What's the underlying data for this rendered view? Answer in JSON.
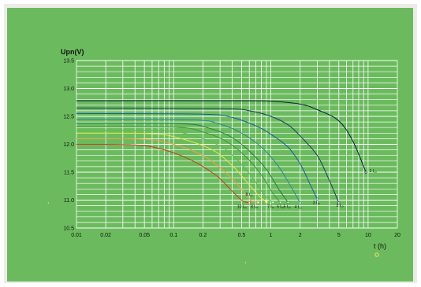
{
  "chart_data": {
    "type": "line",
    "ylabel": "Upn(V)",
    "xlabel": "t (h)",
    "x_scale": "log",
    "xlim": [
      0.01,
      20
    ],
    "ylim": [
      10.5,
      13.5
    ],
    "grid": true,
    "x_ticks": [
      {
        "value": 0.01,
        "label": "0.01"
      },
      {
        "value": 0.02,
        "label": "0.02"
      },
      {
        "value": 0.05,
        "label": "0.05"
      },
      {
        "value": 0.1,
        "label": "0.1"
      },
      {
        "value": 0.2,
        "label": "0.2"
      },
      {
        "value": 0.5,
        "label": "0.5"
      },
      {
        "value": 1,
        "label": "1"
      },
      {
        "value": 2,
        "label": "2"
      },
      {
        "value": 5,
        "label": "5"
      },
      {
        "value": 10,
        "label": "10"
      },
      {
        "value": 20,
        "label": "20"
      }
    ],
    "y_ticks": [
      {
        "value": 10.5,
        "label": "10.5"
      },
      {
        "value": 11.0,
        "label": "11.0"
      },
      {
        "value": 11.5,
        "label": "11.5"
      },
      {
        "value": 12.0,
        "label": "12.0"
      },
      {
        "value": 12.5,
        "label": "12.5"
      },
      {
        "value": 13.0,
        "label": "13.0"
      },
      {
        "value": 13.5,
        "label": "13.5"
      }
    ],
    "series": [
      {
        "label": "1 I₁₀",
        "color": "#0a1a3c",
        "x": [
          0.01,
          0.5,
          1,
          2,
          3,
          5,
          7,
          9.5
        ],
        "y": [
          12.78,
          12.78,
          12.77,
          12.72,
          12.62,
          12.42,
          12.05,
          11.5
        ]
      },
      {
        "label": "2 I₁₀",
        "color": "#1e3c60",
        "x": [
          0.01,
          0.3,
          0.6,
          1,
          1.5,
          2,
          3,
          4,
          5
        ],
        "y": [
          12.65,
          12.64,
          12.6,
          12.5,
          12.35,
          12.15,
          11.8,
          11.35,
          10.95
        ]
      },
      {
        "label": "3 I₁₀",
        "color": "#1a5ca0",
        "x": [
          0.01,
          0.2,
          0.4,
          0.7,
          1,
          1.5,
          2,
          2.5,
          3
        ],
        "y": [
          12.55,
          12.54,
          12.48,
          12.33,
          12.18,
          11.95,
          11.65,
          11.3,
          11.02
        ]
      },
      {
        "label": "4 I₁₀",
        "color": "#2a8a9a",
        "x": [
          0.01,
          0.15,
          0.3,
          0.5,
          0.8,
          1.2,
          1.6,
          2
        ],
        "y": [
          12.45,
          12.44,
          12.36,
          12.2,
          11.95,
          11.6,
          11.25,
          10.95
        ]
      },
      {
        "label": "5 I₁₀",
        "color": "#1f8048",
        "x": [
          0.01,
          0.12,
          0.25,
          0.4,
          0.6,
          0.9,
          1.2,
          1.5
        ],
        "y": [
          12.38,
          12.37,
          12.27,
          12.12,
          11.88,
          11.55,
          11.2,
          10.96
        ]
      },
      {
        "label": "6 I₁₀",
        "color": "#3c9a3c",
        "x": [
          0.01,
          0.1,
          0.2,
          0.35,
          0.55,
          0.8,
          1.05,
          1.25
        ],
        "y": [
          12.32,
          12.31,
          12.22,
          12.05,
          11.78,
          11.45,
          11.12,
          10.96
        ]
      },
      {
        "label": "7 I₁₀",
        "color": "#5cbe4a",
        "x": [
          0.01,
          0.08,
          0.15,
          0.3,
          0.45,
          0.65,
          0.85,
          1.05
        ],
        "y": [
          12.25,
          12.24,
          12.17,
          11.97,
          11.72,
          11.4,
          11.1,
          10.96
        ]
      },
      {
        "label": "8 I₁₀",
        "color": "#e8e840",
        "x": [
          0.01,
          0.06,
          0.12,
          0.25,
          0.4,
          0.55,
          0.75,
          0.9
        ],
        "y": [
          12.2,
          12.19,
          12.1,
          11.9,
          11.62,
          11.35,
          11.08,
          10.97
        ]
      },
      {
        "label": "9 I₁₀",
        "color": "#f2a040",
        "x": [
          0.01,
          0.05,
          0.1,
          0.2,
          0.33,
          0.47,
          0.62,
          0.74
        ],
        "y": [
          12.1,
          12.09,
          12.0,
          11.8,
          11.52,
          11.25,
          11.0,
          10.96
        ]
      },
      {
        "label": "10 I₁₀",
        "color": "#c83c1a",
        "x": [
          0.01,
          0.04,
          0.08,
          0.15,
          0.27,
          0.38,
          0.5,
          0.6
        ],
        "y": [
          12.0,
          11.99,
          11.9,
          11.72,
          11.45,
          11.2,
          11.0,
          10.95
        ]
      }
    ],
    "curve_labels": [
      {
        "text": "1 I₁₀",
        "x": 10.3,
        "y": 11.5
      },
      {
        "text": "2 I₁₀",
        "x": 4.7,
        "y": 10.88
      },
      {
        "text": "3 I₁₀",
        "x": 2.7,
        "y": 10.93
      },
      {
        "text": "4 I₁₀",
        "x": 1.75,
        "y": 10.85
      },
      {
        "text": "5 I₁₀",
        "x": 1.35,
        "y": 10.86
      },
      {
        "text": "6 I₁₀",
        "x": 1.15,
        "y": 10.86
      },
      {
        "text": "7 I₁₀",
        "x": 0.92,
        "y": 10.86
      },
      {
        "text": "8 I₁₀",
        "x": 0.62,
        "y": 10.86
      },
      {
        "text": "9 I₁₀",
        "x": 0.55,
        "y": 11.08
      },
      {
        "text": "10 I₁₀",
        "x": 0.45,
        "y": 10.86
      }
    ]
  }
}
